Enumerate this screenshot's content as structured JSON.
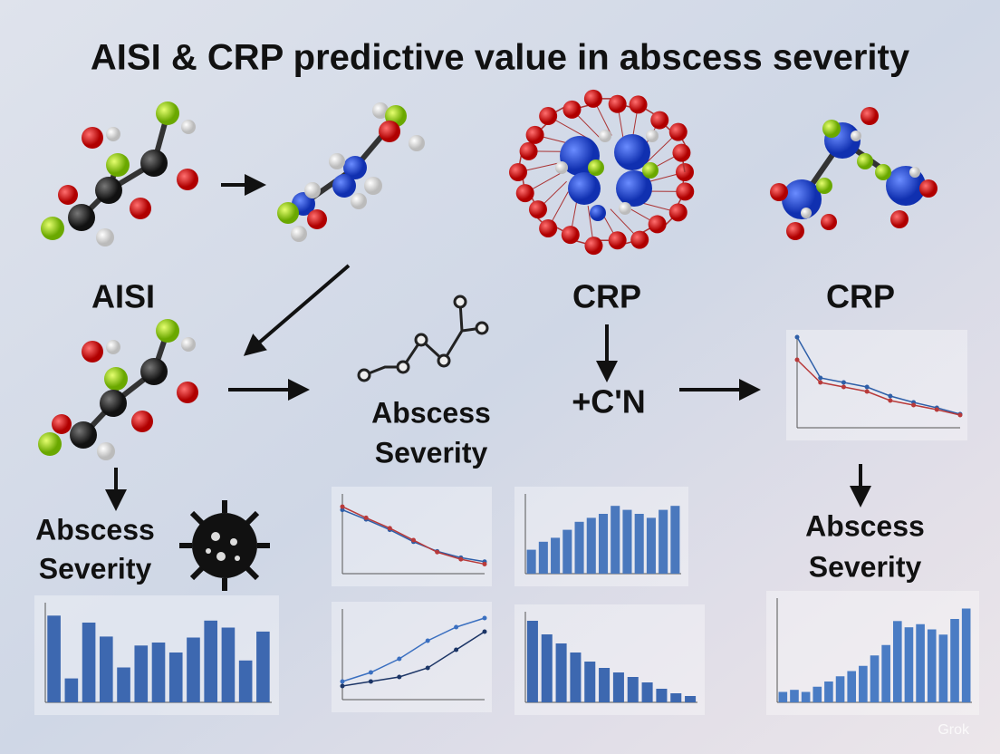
{
  "title": "AISI & CRP  predictive value in abscess severity",
  "labels": {
    "aisi": "AISI",
    "crp_center": "CRP",
    "crp_right": "CRP",
    "reaction": "+C'N",
    "abscess_left": [
      "Abscess",
      "Severity"
    ],
    "abscess_middle": [
      "Abscess",
      "Severity"
    ],
    "abscess_right": [
      "Abscess",
      "Severity"
    ]
  },
  "watermark": "Grok",
  "mini_charts": [
    {
      "type": "bar",
      "color": "#3d68b0",
      "ylim": [
        0,
        100
      ],
      "values": [
        87,
        24,
        80,
        66,
        35,
        57,
        60,
        50,
        65,
        82,
        75,
        42,
        71
      ]
    },
    {
      "type": "line",
      "ylim": [
        0,
        100
      ],
      "series": [
        {
          "color": "#2e5fa8",
          "values": [
            80,
            68,
            55,
            40,
            28,
            20,
            15
          ]
        },
        {
          "color": "#b83a3a",
          "values": [
            84,
            70,
            57,
            42,
            27,
            18,
            12
          ]
        }
      ]
    },
    {
      "type": "bar",
      "color": "#4a78bd",
      "ylim": [
        0,
        100
      ],
      "values": [
        30,
        40,
        45,
        55,
        65,
        70,
        75,
        85,
        80,
        75,
        70,
        80,
        85
      ]
    },
    {
      "type": "line",
      "ylim": [
        0,
        100
      ],
      "series": [
        {
          "color": "#2e5fa8",
          "values": [
            100,
            55,
            50,
            45,
            35,
            28,
            22,
            15
          ]
        },
        {
          "color": "#b83a3a",
          "values": [
            75,
            50,
            45,
            40,
            30,
            25,
            20,
            14
          ]
        }
      ]
    },
    {
      "type": "line",
      "ylim": [
        0,
        100
      ],
      "series": [
        {
          "color": "#3a6fc0",
          "values": [
            20,
            30,
            45,
            65,
            80,
            90
          ]
        },
        {
          "color": "#1c3566",
          "values": [
            15,
            20,
            25,
            35,
            55,
            75
          ]
        }
      ]
    },
    {
      "type": "bar",
      "color": "#3d68b0",
      "ylim": [
        0,
        100
      ],
      "values": [
        90,
        75,
        65,
        55,
        45,
        38,
        33,
        28,
        22,
        15,
        10,
        7
      ]
    },
    {
      "type": "bar",
      "color": "#4a7cc4",
      "ylim": [
        0,
        100
      ],
      "values": [
        10,
        12,
        10,
        15,
        20,
        25,
        30,
        35,
        45,
        55,
        78,
        72,
        75,
        70,
        65,
        80,
        90
      ]
    }
  ]
}
